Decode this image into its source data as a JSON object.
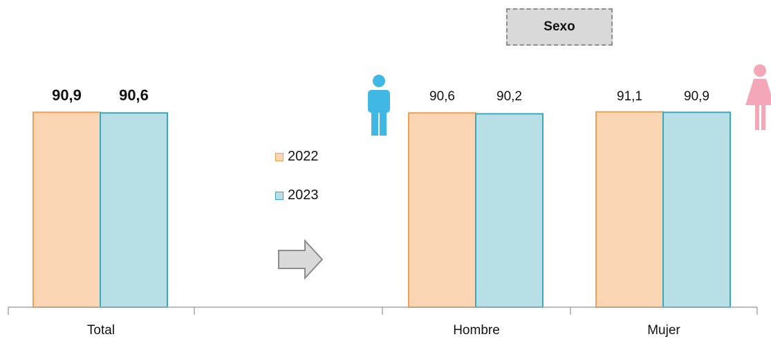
{
  "chart_data": {
    "type": "bar",
    "groups": [
      "Total",
      "",
      "Hombre",
      "Mujer"
    ],
    "categories": [
      "Total",
      "Hombre",
      "Mujer"
    ],
    "series": [
      {
        "name": "2022",
        "values": [
          90.9,
          90.6,
          91.1
        ],
        "labels": [
          "90,9",
          "90,6",
          "91,1"
        ]
      },
      {
        "name": "2023",
        "values": [
          90.6,
          90.2,
          90.9
        ],
        "labels": [
          "90,6",
          "90,2",
          "90,9"
        ]
      }
    ],
    "bold_labels_category": "Total",
    "colors": {
      "2022_fill": "#f9d5b4",
      "2022_border": "#f0a050",
      "2023_fill": "#b8dfe6",
      "2023_border": "#3aa8bc",
      "axis": "#a6a6a6",
      "male_icon": "#41b8e4",
      "female_icon": "#f4a7b9"
    },
    "annotation": "Sexo",
    "legend_position": "middle-left",
    "icons": [
      "male-icon",
      "female-icon",
      "right-arrow-icon"
    ]
  }
}
